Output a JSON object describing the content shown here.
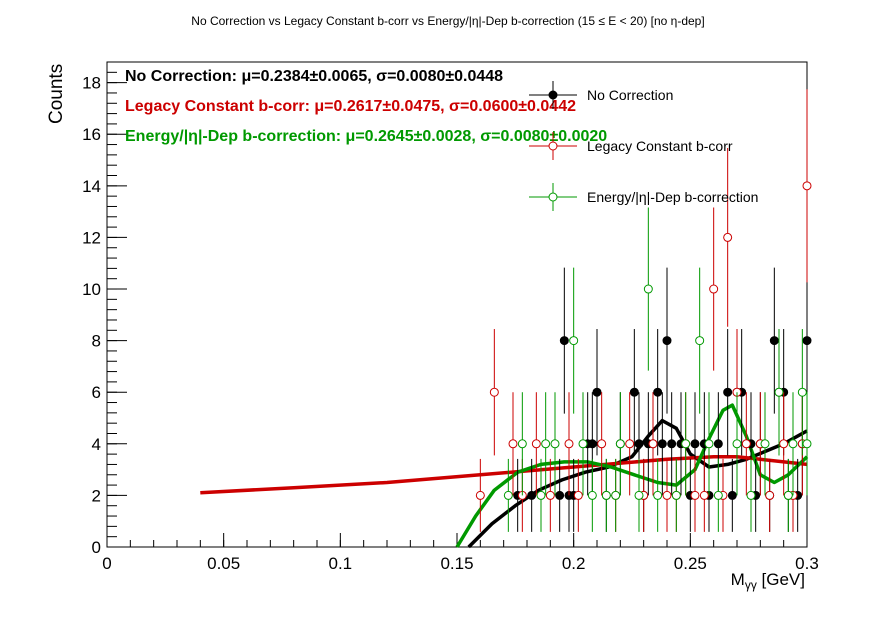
{
  "chart_data": {
    "type": "scatter",
    "title": "No Correction vs Legacy Constant b-corr vs Energy/|η|-Dep b-correction   (15 ≤ E < 20)   [no η-dep]",
    "xlabel": "M",
    "xlabel_sub": "γγ",
    "xlabel_unit": " [GeV]",
    "ylabel": "Counts",
    "xlim": [
      0,
      0.3
    ],
    "ylim": [
      0,
      18.8
    ],
    "xticks": [
      0,
      0.05,
      0.1,
      0.15,
      0.2,
      0.25,
      0.3
    ],
    "xtick_labels": [
      "0",
      "0.05",
      "0.1",
      "0.15",
      "0.2",
      "0.25",
      "0.3"
    ],
    "yticks": [
      0,
      2,
      4,
      6,
      8,
      10,
      12,
      14,
      16,
      18
    ],
    "ytick_labels": [
      "0",
      "2",
      "4",
      "6",
      "8",
      "10",
      "12",
      "14",
      "16",
      "18"
    ],
    "grid": false,
    "legend_position": "top-right",
    "fit_annotations": [
      {
        "label": "No Correction:",
        "text": "μ=0.2384±0.0065, σ=0.0080±0.0448",
        "color": "#000000"
      },
      {
        "label": "Legacy Constant b-corr:",
        "text": "μ=0.2617±0.0475, σ=0.0600±0.0442",
        "color": "#cc0000"
      },
      {
        "label": "Energy/|η|-Dep b-correction:",
        "text": "μ=0.2645±0.0028, σ=0.0080±0.0020",
        "color": "#009900"
      }
    ],
    "series": [
      {
        "name": "No Correction",
        "color": "#000000",
        "marker": "filled-circle",
        "x": [
          0.176,
          0.182,
          0.194,
          0.196,
          0.198,
          0.2,
          0.206,
          0.208,
          0.21,
          0.214,
          0.22,
          0.226,
          0.228,
          0.23,
          0.232,
          0.234,
          0.236,
          0.238,
          0.24,
          0.242,
          0.246,
          0.25,
          0.252,
          0.256,
          0.258,
          0.262,
          0.266,
          0.268,
          0.27,
          0.272,
          0.276,
          0.278,
          0.28,
          0.284,
          0.286,
          0.288,
          0.29,
          0.292,
          0.296,
          0.298,
          0.3
        ],
        "y": [
          2,
          2,
          2,
          8,
          2,
          2,
          4,
          4,
          6,
          2,
          4,
          6,
          4,
          2,
          4,
          4,
          6,
          4,
          8,
          4,
          4,
          2,
          4,
          4,
          2,
          4,
          6,
          2,
          6,
          6,
          4,
          2,
          4,
          2,
          8,
          6,
          6,
          2,
          2,
          4,
          8
        ]
      },
      {
        "name": "Legacy Constant b-corr",
        "color": "#cc0000",
        "marker": "open-circle",
        "x": [
          0.16,
          0.166,
          0.174,
          0.178,
          0.184,
          0.19,
          0.198,
          0.202,
          0.212,
          0.218,
          0.224,
          0.23,
          0.234,
          0.24,
          0.244,
          0.248,
          0.252,
          0.256,
          0.26,
          0.264,
          0.266,
          0.27,
          0.274,
          0.28,
          0.284,
          0.29,
          0.294,
          0.298,
          0.3
        ],
        "y": [
          2,
          6,
          4,
          2,
          4,
          2,
          4,
          2,
          4,
          2,
          4,
          2,
          4,
          2,
          2,
          4,
          2,
          2,
          10,
          2,
          12,
          6,
          4,
          4,
          2,
          4,
          2,
          4,
          14
        ]
      },
      {
        "name": "Energy/|η|-Dep b-correction",
        "color": "#009900",
        "marker": "open-circle",
        "x": [
          0.172,
          0.178,
          0.186,
          0.188,
          0.192,
          0.2,
          0.204,
          0.208,
          0.214,
          0.218,
          0.22,
          0.228,
          0.232,
          0.236,
          0.244,
          0.248,
          0.254,
          0.258,
          0.262,
          0.27,
          0.276,
          0.282,
          0.288,
          0.292,
          0.294,
          0.298,
          0.3
        ],
        "y": [
          2,
          4,
          2,
          4,
          4,
          8,
          4,
          2,
          2,
          2,
          4,
          2,
          10,
          2,
          2,
          4,
          8,
          4,
          2,
          4,
          2,
          4,
          6,
          2,
          4,
          6,
          4
        ]
      }
    ],
    "fit_curves": [
      {
        "name": "No Correction fit",
        "color": "#000000",
        "x": [
          0.155,
          0.165,
          0.175,
          0.185,
          0.195,
          0.205,
          0.215,
          0.225,
          0.232,
          0.238,
          0.244,
          0.25,
          0.258,
          0.266,
          0.274,
          0.282,
          0.29,
          0.3
        ],
        "y": [
          0,
          0.9,
          1.6,
          2.2,
          2.6,
          2.9,
          3.1,
          3.5,
          4.3,
          4.9,
          4.6,
          3.6,
          3.1,
          3.2,
          3.4,
          3.7,
          4.0,
          4.5
        ]
      },
      {
        "name": "Legacy Constant b-corr fit",
        "color": "#cc0000",
        "x": [
          0.04,
          0.08,
          0.12,
          0.16,
          0.2,
          0.24,
          0.26,
          0.27,
          0.28,
          0.3
        ],
        "y": [
          2.1,
          2.3,
          2.5,
          2.8,
          3.1,
          3.4,
          3.5,
          3.5,
          3.4,
          3.2
        ]
      },
      {
        "name": "Energy/|η|-Dep b-correction fit",
        "color": "#009900",
        "x": [
          0.15,
          0.158,
          0.166,
          0.176,
          0.186,
          0.196,
          0.206,
          0.216,
          0.226,
          0.236,
          0.244,
          0.252,
          0.258,
          0.264,
          0.268,
          0.274,
          0.28,
          0.286,
          0.292,
          0.3
        ],
        "y": [
          0,
          1.2,
          2.2,
          2.9,
          3.2,
          3.3,
          3.3,
          3.1,
          2.8,
          2.5,
          2.4,
          3.0,
          4.2,
          5.3,
          5.5,
          4.3,
          2.8,
          2.5,
          2.8,
          3.5
        ]
      }
    ]
  }
}
